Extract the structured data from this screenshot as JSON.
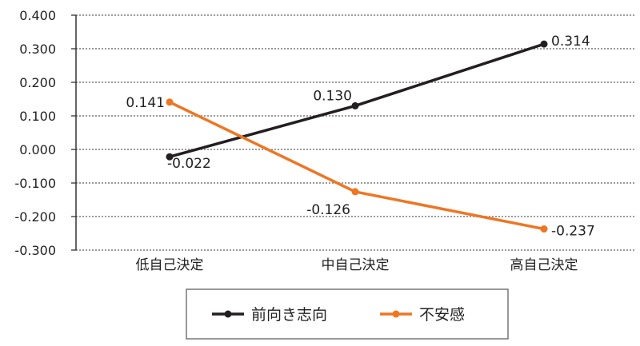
{
  "chart_data": {
    "type": "line",
    "categories": [
      "低自己決定",
      "中自己決定",
      "高自己決定"
    ],
    "series": [
      {
        "name": "前向き志向",
        "values": [
          -0.022,
          0.13,
          0.314
        ],
        "labels": [
          "-0.022",
          "0.130",
          "0.314"
        ],
        "color": "#231f20"
      },
      {
        "name": "不安感",
        "values": [
          0.141,
          -0.126,
          -0.237
        ],
        "labels": [
          "0.141",
          "-0.126",
          "-0.237"
        ],
        "color": "#ee7623"
      }
    ],
    "ylim": [
      -0.3,
      0.4
    ],
    "yticks": [
      0.4,
      0.3,
      0.2,
      0.1,
      0.0,
      -0.1,
      -0.2,
      -0.3
    ],
    "ytick_labels": [
      "0.400",
      "0.300",
      "0.200",
      "0.100",
      "0.000",
      "-0.100",
      "-0.200",
      "-0.300"
    ],
    "grid": true,
    "legend_position": "bottom-center"
  }
}
